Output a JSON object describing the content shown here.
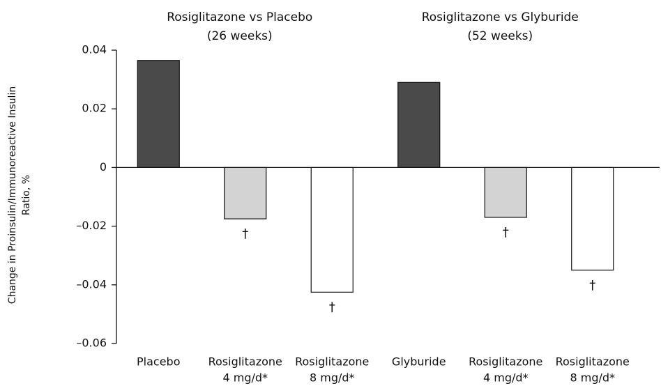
{
  "chart_data": {
    "type": "bar",
    "group_titles": [
      [
        "Rosiglitazone vs Placebo",
        "(26 weeks)"
      ],
      [
        "Rosiglitazone vs Glyburide",
        "(52 weeks)"
      ]
    ],
    "ylabel": [
      "Change in Proinsulin/Immunoreactive Insulin",
      "Ratio, %"
    ],
    "categories": [
      [
        "Placebo"
      ],
      [
        "Rosiglitazone",
        "4 mg/d*"
      ],
      [
        "Rosiglitazone",
        "8 mg/d*"
      ],
      [
        "Glyburide"
      ],
      [
        "Rosiglitazone",
        "4 mg/d*"
      ],
      [
        "Rosiglitazone",
        "8 mg/d*"
      ]
    ],
    "values": [
      0.0365,
      -0.0175,
      -0.0425,
      0.029,
      -0.017,
      -0.035
    ],
    "colors": [
      "#4a4a4a",
      "#d3d3d3",
      "#ffffff",
      "#4a4a4a",
      "#d3d3d3",
      "#ffffff"
    ],
    "annotations": [
      null,
      "†",
      "†",
      null,
      "†",
      "†"
    ],
    "ylim": [
      -0.06,
      0.04
    ],
    "yticks": [
      0.04,
      0.02,
      0,
      {
        "value": -0.02,
        "label": "–0.02"
      },
      {
        "value": -0.04,
        "label": "–0.04"
      },
      {
        "value": -0.06,
        "label": "–0.06"
      }
    ]
  }
}
